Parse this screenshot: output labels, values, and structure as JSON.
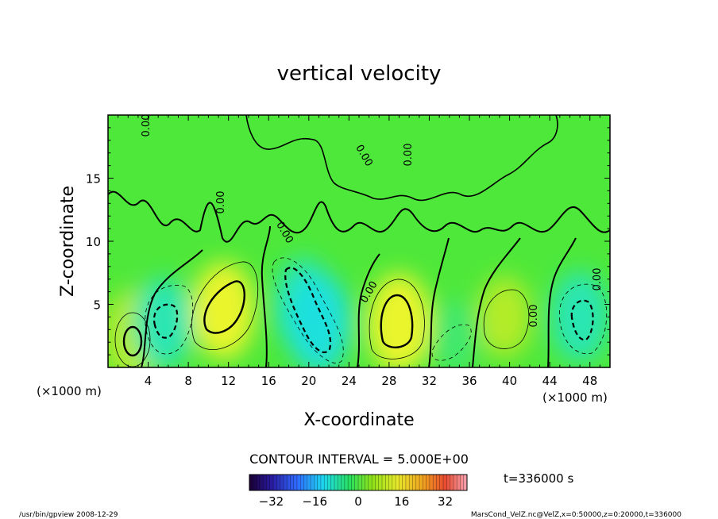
{
  "chart_data": {
    "type": "heatmap",
    "title": "vertical velocity",
    "xlabel": "X-coordinate",
    "ylabel": "Z-coordinate",
    "x_unit_label": "(×1000 m)",
    "z_unit_label": "(×1000 m)",
    "xlim": [
      0,
      50
    ],
    "ylim": [
      0,
      20
    ],
    "x_ticks": [
      4,
      8,
      12,
      16,
      20,
      24,
      28,
      32,
      36,
      40,
      44,
      48
    ],
    "y_ticks": [
      5,
      10,
      15
    ],
    "contour_interval_text": "CONTOUR INTERVAL = 5.000E+00",
    "contour_interval": 5,
    "colorbar": {
      "min": -40,
      "max": 40,
      "ticks": [
        -32,
        -16,
        0,
        16,
        32
      ]
    },
    "contour_labels": [
      "0.00",
      "0.00",
      "0.00",
      "0.00",
      "0.00",
      "0.00",
      "0.00",
      "0.00"
    ],
    "cells": [
      {
        "x": 2.5,
        "z": 2.5,
        "value": 15
      },
      {
        "x": 5.5,
        "z": 3.5,
        "value": -14
      },
      {
        "x": 11.5,
        "z": 4.5,
        "value": 17
      },
      {
        "x": 19.5,
        "z": 5.0,
        "value": -15
      },
      {
        "x": 21.0,
        "z": 3.5,
        "value": -18
      },
      {
        "x": 29.0,
        "z": 3.5,
        "value": 18
      },
      {
        "x": 34.5,
        "z": 2.5,
        "value": -6
      },
      {
        "x": 39.5,
        "z": 4.0,
        "value": 10
      },
      {
        "x": 47.0,
        "z": 4.0,
        "value": -14
      }
    ],
    "time_label": "t=336000 s"
  },
  "footer": {
    "left": "/usr/bin/gpview   2008-12-29",
    "right": "MarsCond_VelZ.nc@VelZ,x=0:50000,z=0:20000,t=336000"
  }
}
